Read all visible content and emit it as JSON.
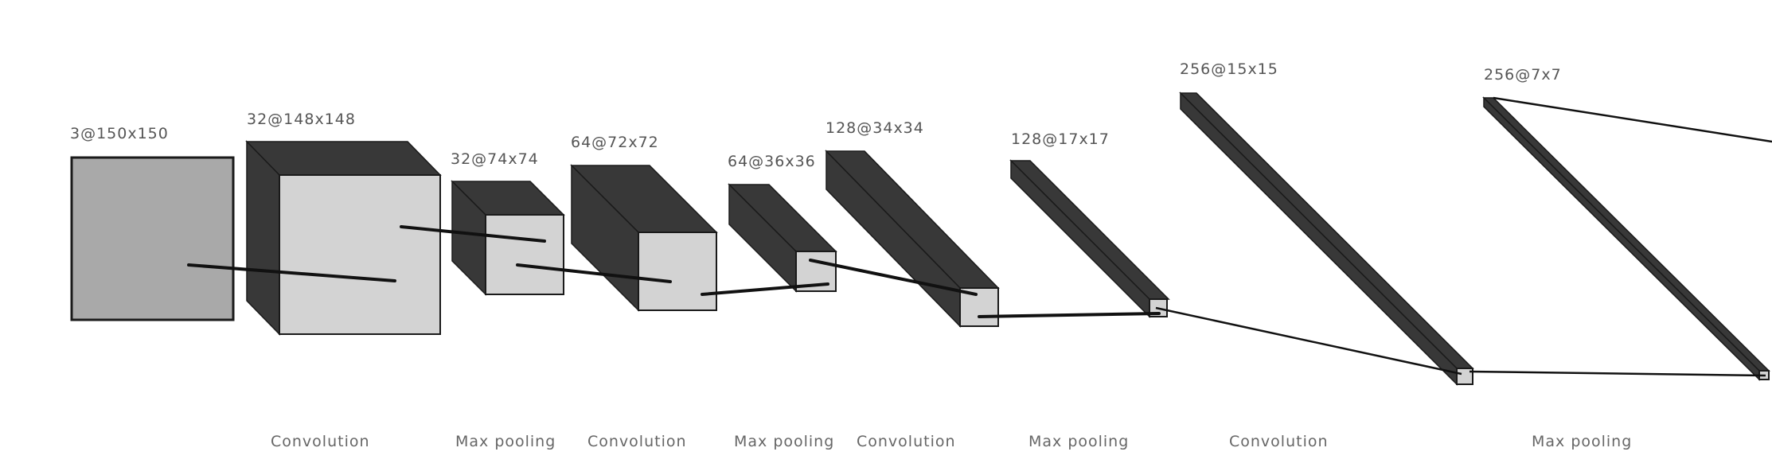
{
  "layers": [
    {
      "label": "3@150x150"
    },
    {
      "label": "32@148x148"
    },
    {
      "label": "32@74x74"
    },
    {
      "label": "64@72x72"
    },
    {
      "label": "64@36x36"
    },
    {
      "label": "128@34x34"
    },
    {
      "label": "128@17x17"
    },
    {
      "label": "256@15x15"
    },
    {
      "label": "256@7x7"
    }
  ],
  "operations": [
    {
      "label": "Convolution"
    },
    {
      "label": "Max pooling"
    },
    {
      "label": "Convolution"
    },
    {
      "label": "Max pooling"
    },
    {
      "label": "Convolution"
    },
    {
      "label": "Max pooling"
    },
    {
      "label": "Convolution"
    },
    {
      "label": "Max pooling"
    }
  ],
  "colors": {
    "block_dark": "#383838",
    "block_front": "#d3d3d3",
    "input_face": "#a9a9a9"
  }
}
